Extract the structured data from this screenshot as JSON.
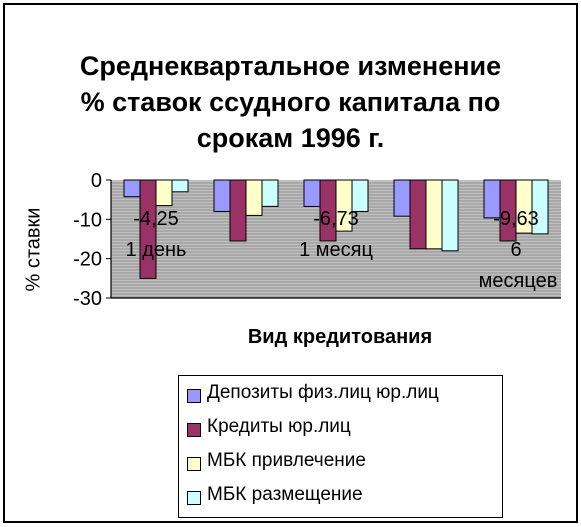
{
  "chart_data": {
    "type": "bar",
    "title_lines": [
      "Среднеквартальное изменение",
      "% ставок ссудного капитала по",
      "срокам 1996 г."
    ],
    "xlabel": "Вид кредитования",
    "ylabel": "% ставки",
    "ylim": [
      -30,
      0
    ],
    "yticks": [
      "0",
      "-10",
      "-20",
      "-30"
    ],
    "categories": [
      "",
      "",
      "",
      "",
      ""
    ],
    "series": [
      {
        "name": "Депозиты физ.лиц юр.лиц",
        "color": "#9999ff",
        "values": [
          -4.25,
          -8,
          -6.73,
          -9.2,
          -9.63
        ]
      },
      {
        "name": "Кредиты юр.лиц",
        "color": "#993366",
        "values": [
          -25,
          -15.5,
          -15.5,
          -17.5,
          -15.5
        ]
      },
      {
        "name": "МБК привлечение",
        "color": "#ffffcc",
        "values": [
          -6.5,
          -9,
          -13,
          -17.5,
          -13.5
        ]
      },
      {
        "name": "МБК размещение",
        "color": "#ccffff",
        "values": [
          -3,
          -6.7,
          -8,
          -18,
          -13.7
        ]
      }
    ],
    "annotations": [
      {
        "value": "-4,25",
        "label": "1 день"
      },
      {
        "value": "-6,73",
        "label": "1 месяц"
      },
      {
        "value": "-9,63",
        "label": "6 месяцев"
      }
    ],
    "grid": true
  }
}
